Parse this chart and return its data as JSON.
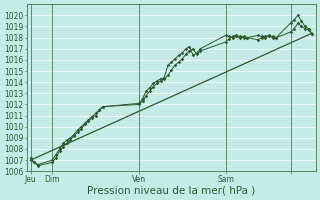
{
  "xlabel": "Pression niveau de la mer( hPa )",
  "bg_color": "#c5ebe7",
  "grid_color": "#ffffff",
  "line_color": "#2d5a2d",
  "ylim_low": 1006,
  "ylim_high": 1021,
  "ytick_min": 1006,
  "ytick_max": 1020,
  "x_tick_positions": [
    0,
    12,
    60,
    108,
    144
  ],
  "x_tick_labels": [
    "Jeu",
    "Dim",
    "Ven",
    "Sam",
    ""
  ],
  "xlim_low": -2,
  "xlim_high": 158,
  "series1_x": [
    0,
    2,
    4,
    12,
    14,
    16,
    18,
    20,
    22,
    24,
    26,
    28,
    30,
    32,
    34,
    36,
    38,
    40,
    60,
    62,
    64,
    66,
    68,
    70,
    72,
    74,
    76,
    78,
    80,
    82,
    84,
    86,
    88,
    90,
    92,
    94,
    108,
    110,
    112,
    114,
    116,
    118,
    120,
    126,
    128,
    130,
    132,
    134,
    136,
    144,
    146,
    148,
    150,
    152,
    154,
    156
  ],
  "series1_y": [
    1007.2,
    1006.8,
    1006.5,
    1006.8,
    1007.2,
    1007.8,
    1008.2,
    1008.5,
    1008.8,
    1009.2,
    1009.5,
    1009.8,
    1010.2,
    1010.5,
    1010.8,
    1011.0,
    1011.5,
    1011.8,
    1012.1,
    1012.5,
    1013.2,
    1013.5,
    1013.9,
    1014.1,
    1014.3,
    1014.4,
    1015.5,
    1015.8,
    1016.1,
    1016.4,
    1016.6,
    1017.0,
    1017.2,
    1016.4,
    1016.6,
    1017.0,
    1018.2,
    1018.1,
    1018.0,
    1018.1,
    1018.0,
    1018.0,
    1018.0,
    1018.2,
    1018.1,
    1018.0,
    1018.1,
    1018.0,
    1018.0,
    1019.3,
    1019.6,
    1020.0,
    1019.5,
    1019.0,
    1018.8,
    1018.3
  ],
  "series2_x": [
    0,
    2,
    4,
    12,
    14,
    16,
    18,
    20,
    22,
    24,
    26,
    28,
    30,
    32,
    34,
    36,
    38,
    40,
    60,
    62,
    64,
    66,
    68,
    70,
    72,
    74,
    76,
    78,
    80,
    82,
    84,
    86,
    88,
    90,
    92,
    94,
    108,
    110,
    112,
    114,
    116,
    118,
    120,
    126,
    128,
    130,
    132,
    134,
    136,
    144,
    146,
    148,
    150,
    152,
    154,
    156
  ],
  "series2_y": [
    1007.0,
    1006.8,
    1006.6,
    1007.0,
    1007.5,
    1008.0,
    1008.5,
    1008.8,
    1009.0,
    1009.3,
    1009.7,
    1010.0,
    1010.3,
    1010.6,
    1010.9,
    1011.2,
    1011.5,
    1011.8,
    1012.0,
    1012.3,
    1012.8,
    1013.2,
    1013.6,
    1013.9,
    1014.1,
    1014.3,
    1014.6,
    1015.1,
    1015.5,
    1015.8,
    1016.1,
    1016.5,
    1016.8,
    1017.0,
    1016.5,
    1016.8,
    1017.6,
    1017.9,
    1018.1,
    1018.2,
    1018.1,
    1018.1,
    1018.0,
    1017.8,
    1018.0,
    1018.1,
    1018.2,
    1018.1,
    1018.0,
    1018.5,
    1018.8,
    1019.3,
    1019.0,
    1018.8,
    1018.7,
    1018.3
  ],
  "trend_x": [
    0,
    156
  ],
  "trend_y": [
    1007.0,
    1018.4
  ],
  "marker_size": 1.8,
  "linewidth": 0.7,
  "trend_linewidth": 0.9,
  "font_size_ticks": 5.5,
  "font_size_xlabel": 7.5
}
